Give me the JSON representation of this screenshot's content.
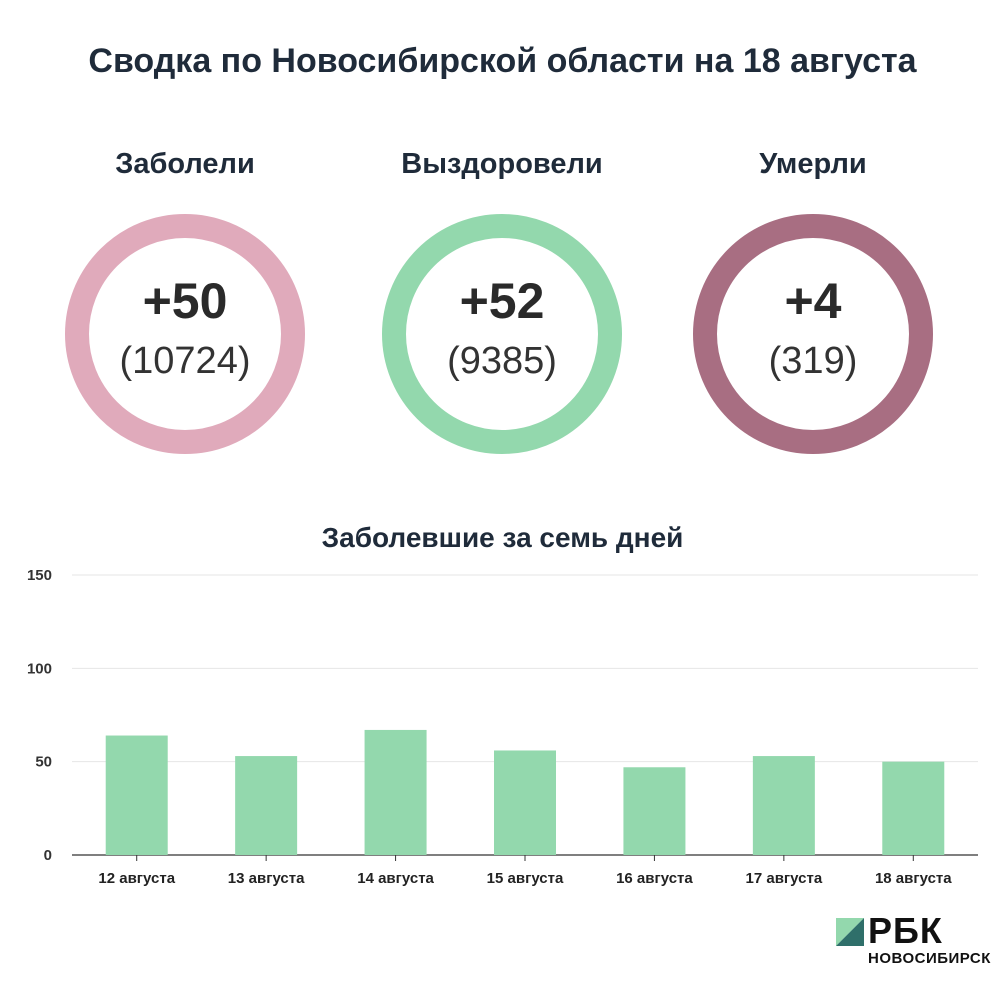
{
  "title": "Сводка по Новосибирской области на 18 августа",
  "stats": [
    {
      "label": "Заболели",
      "delta": "+50",
      "total": "(10724)",
      "color": "#e0aabb"
    },
    {
      "label": "Выздоровели",
      "delta": "+52",
      "total": "(9385)",
      "color": "#93d8ad"
    },
    {
      "label": "Умерли",
      "delta": "+4",
      "total": "(319)",
      "color": "#a86e82"
    }
  ],
  "chart_data": {
    "type": "bar",
    "title": "Заболевшие за семь дней",
    "categories": [
      "12 августа",
      "13 августа",
      "14 августа",
      "15 августа",
      "16 августа",
      "17 августа",
      "18 августа"
    ],
    "values": [
      64,
      53,
      67,
      56,
      47,
      53,
      50
    ],
    "ylim": [
      0,
      150
    ],
    "yticks": [
      0,
      50,
      100,
      150
    ],
    "grid": true,
    "color": "#93d8ad"
  },
  "brand": {
    "name": "РБК",
    "city": "НОВОСИБИРСК",
    "accent": "#2f6f6a"
  }
}
